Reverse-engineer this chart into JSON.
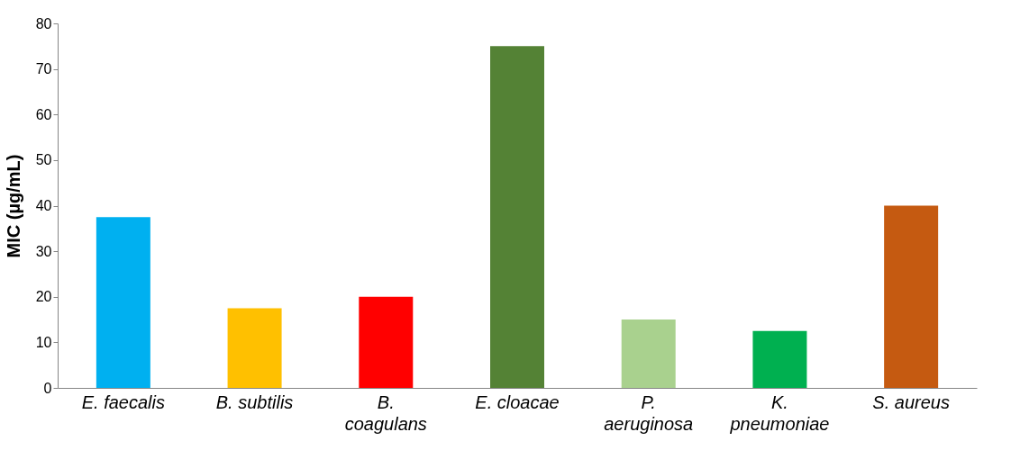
{
  "chart_data": {
    "type": "bar",
    "ylabel": "MIC (µg/mL)",
    "categories": [
      "E. faecalis",
      "B. subtilis",
      "B. coagulans",
      "E. cloacae",
      "P. aeruginosa",
      "K. pneumoniae",
      "S. aureus"
    ],
    "values": [
      37.5,
      17.5,
      20,
      75,
      15,
      12.5,
      40
    ],
    "colors": [
      "#00b0f0",
      "#ffc000",
      "#ff0000",
      "#548235",
      "#a9d18e",
      "#00b050",
      "#c55a11"
    ],
    "ylim": [
      0,
      80
    ],
    "yticks": [
      0,
      10,
      20,
      30,
      40,
      50,
      60,
      70,
      80
    ],
    "grid": false
  }
}
